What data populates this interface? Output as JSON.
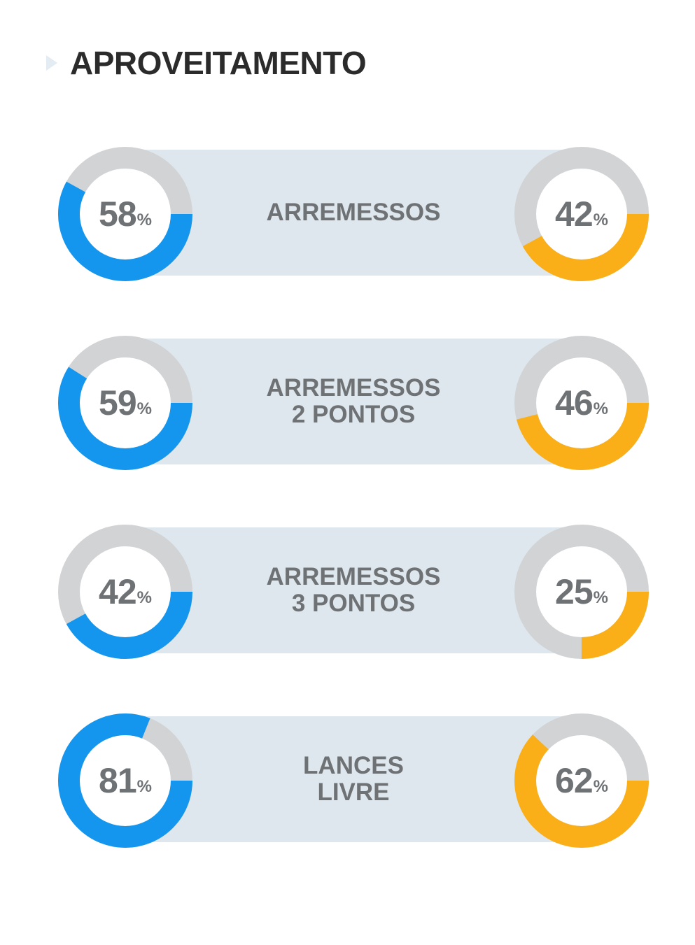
{
  "title": "APROVEITAMENTO",
  "colors": {
    "left_series": "#1596ee",
    "right_series": "#faaf19",
    "track": "#d2d3d5",
    "band": "#dfe7ee",
    "label": "#6f7275"
  },
  "stats": [
    {
      "label": "ARREMESSOS",
      "left": {
        "value": "58",
        "unit": "%"
      },
      "right": {
        "value": "42",
        "unit": "%"
      }
    },
    {
      "label": "ARREMESSOS\n2 PONTOS",
      "left": {
        "value": "59",
        "unit": "%"
      },
      "right": {
        "value": "46",
        "unit": "%"
      }
    },
    {
      "label": "ARREMESSOS\n3 PONTOS",
      "left": {
        "value": "42",
        "unit": "%"
      },
      "right": {
        "value": "25",
        "unit": "%"
      }
    },
    {
      "label": "LANCES\nLIVRE",
      "left": {
        "value": "81",
        "unit": "%"
      },
      "right": {
        "value": "62",
        "unit": "%"
      }
    }
  ],
  "chart_data": {
    "type": "pie",
    "title": "APROVEITAMENTO",
    "categories": [
      "ARREMESSOS",
      "ARREMESSOS 2 PONTOS",
      "ARREMESSOS 3 PONTOS",
      "LANCES LIVRE"
    ],
    "series": [
      {
        "values": [
          58,
          59,
          42,
          81
        ]
      },
      {
        "values": [
          42,
          46,
          25,
          62
        ]
      }
    ],
    "ylim": [
      0,
      100
    ]
  }
}
